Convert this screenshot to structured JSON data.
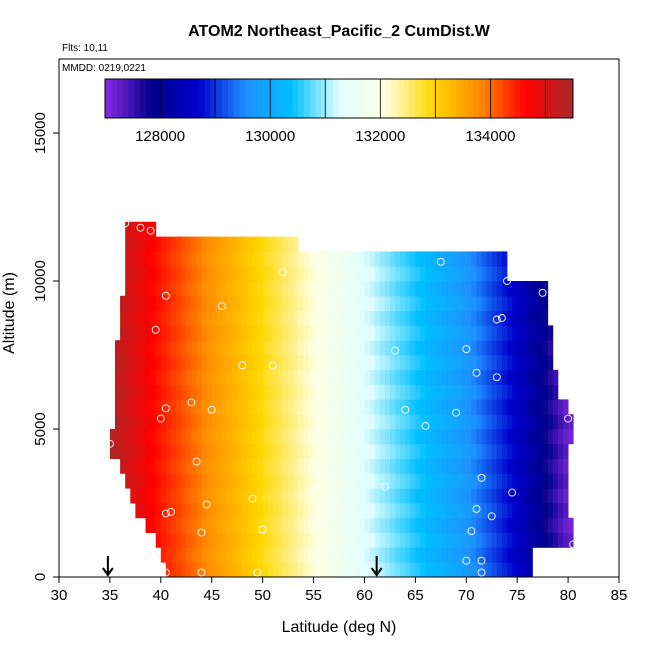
{
  "chart_data": {
    "type": "heatmap",
    "title": "ATOM2 Northeast_Pacific_2 CumDist.W",
    "flights_label": "Flts: 10,11",
    "date_label": "MMDD: 0219,0221",
    "xlabel": "Latitude (deg N)",
    "ylabel": "Altitude (m)",
    "xlim": [
      30,
      85
    ],
    "ylim": [
      0,
      17500
    ],
    "x_ticks": [
      30,
      35,
      40,
      45,
      50,
      55,
      60,
      65,
      70,
      75,
      80,
      85
    ],
    "y_ticks": [
      0,
      5000,
      10000,
      15000
    ],
    "grid": false,
    "colorbar": {
      "placement": "top, inside plot",
      "range": [
        127000,
        135500
      ],
      "ticks": [
        128000,
        130000,
        132000,
        134000
      ],
      "colors": [
        "#8a2be2",
        "#00008b",
        "#0000cd",
        "#1e90ff",
        "#00bfff",
        "#e0ffff",
        "#ffffe0",
        "#ffd700",
        "#ff8c00",
        "#ff0000",
        "#a52a2a"
      ]
    },
    "value_model": {
      "description": "color encodes cumulative distance along flight track; roughly a function of latitude",
      "at_latitude": [
        [
          35,
          135400
        ],
        [
          40,
          134500
        ],
        [
          45,
          133700
        ],
        [
          50,
          132900
        ],
        [
          55,
          132100
        ],
        [
          60,
          131300
        ],
        [
          65,
          130500
        ],
        [
          70,
          129700
        ],
        [
          75,
          128600
        ],
        [
          80,
          127200
        ]
      ]
    },
    "data_extent": [
      {
        "alt": 0,
        "lat_min": 40.5,
        "lat_max": 76.5
      },
      {
        "alt": 500,
        "lat_min": 40,
        "lat_max": 76.5
      },
      {
        "alt": 1000,
        "lat_min": 39.5,
        "lat_max": 80.5
      },
      {
        "alt": 1500,
        "lat_min": 38.5,
        "lat_max": 80.5
      },
      {
        "alt": 2000,
        "lat_min": 37.5,
        "lat_max": 80
      },
      {
        "alt": 2500,
        "lat_min": 37,
        "lat_max": 80
      },
      {
        "alt": 3000,
        "lat_min": 36.5,
        "lat_max": 80
      },
      {
        "alt": 3500,
        "lat_min": 36,
        "lat_max": 80
      },
      {
        "alt": 4000,
        "lat_min": 35,
        "lat_max": 80
      },
      {
        "alt": 4500,
        "lat_min": 35,
        "lat_max": 80.5
      },
      {
        "alt": 5000,
        "lat_min": 35.5,
        "lat_max": 80.5
      },
      {
        "alt": 5500,
        "lat_min": 35.5,
        "lat_max": 80
      },
      {
        "alt": 6000,
        "lat_min": 35.5,
        "lat_max": 79
      },
      {
        "alt": 6500,
        "lat_min": 35.5,
        "lat_max": 79
      },
      {
        "alt": 7000,
        "lat_min": 35.5,
        "lat_max": 78.5
      },
      {
        "alt": 7500,
        "lat_min": 35.5,
        "lat_max": 78.5
      },
      {
        "alt": 8000,
        "lat_min": 36,
        "lat_max": 78.5
      },
      {
        "alt": 8500,
        "lat_min": 36,
        "lat_max": 78
      },
      {
        "alt": 9000,
        "lat_min": 36,
        "lat_max": 78
      },
      {
        "alt": 9500,
        "lat_min": 36.5,
        "lat_max": 78
      },
      {
        "alt": 10000,
        "lat_min": 36.5,
        "lat_max": 74
      },
      {
        "alt": 10500,
        "lat_min": 36.5,
        "lat_max": 74
      },
      {
        "alt": 11000,
        "lat_min": 36.5,
        "lat_max": 53.5
      },
      {
        "alt": 11500,
        "lat_min": 36.5,
        "lat_max": 39.5
      }
    ],
    "sample_points": [
      [
        36.5,
        11950
      ],
      [
        38,
        11800
      ],
      [
        39,
        11700
      ],
      [
        40.5,
        9500
      ],
      [
        39.5,
        8350
      ],
      [
        46,
        9150
      ],
      [
        52,
        10300
      ],
      [
        58,
        9600
      ],
      [
        67.5,
        10650
      ],
      [
        74,
        10000
      ],
      [
        77.5,
        9600
      ],
      [
        73,
        8700
      ],
      [
        73.5,
        8750
      ],
      [
        70,
        7700
      ],
      [
        63,
        7650
      ],
      [
        48,
        7150
      ],
      [
        51,
        7150
      ],
      [
        71,
        6900
      ],
      [
        73,
        6750
      ],
      [
        40.5,
        5700
      ],
      [
        43,
        5900
      ],
      [
        45,
        5650
      ],
      [
        40,
        5350
      ],
      [
        64,
        5650
      ],
      [
        69,
        5550
      ],
      [
        66,
        5100
      ],
      [
        55.5,
        4700
      ],
      [
        35,
        4500
      ],
      [
        80,
        5350
      ],
      [
        43.5,
        3900
      ],
      [
        62,
        3050
      ],
      [
        71.5,
        3350
      ],
      [
        55,
        2950
      ],
      [
        74.5,
        2850
      ],
      [
        49,
        2650
      ],
      [
        44.5,
        2450
      ],
      [
        40.5,
        2150
      ],
      [
        41,
        2200
      ],
      [
        71,
        2300
      ],
      [
        72.5,
        2050
      ],
      [
        56,
        1800
      ],
      [
        50,
        1600
      ],
      [
        44,
        1500
      ],
      [
        70.5,
        1550
      ],
      [
        80.5,
        1100
      ],
      [
        70,
        550
      ],
      [
        71.5,
        550
      ],
      [
        40.5,
        150
      ],
      [
        44,
        150
      ],
      [
        49.5,
        150
      ],
      [
        71.5,
        150
      ]
    ],
    "annotations": [
      {
        "type": "arrow",
        "x": 34.8,
        "direction": "down",
        "at": "x-axis"
      },
      {
        "type": "arrow",
        "x": 61.2,
        "direction": "down",
        "at": "x-axis"
      }
    ]
  }
}
